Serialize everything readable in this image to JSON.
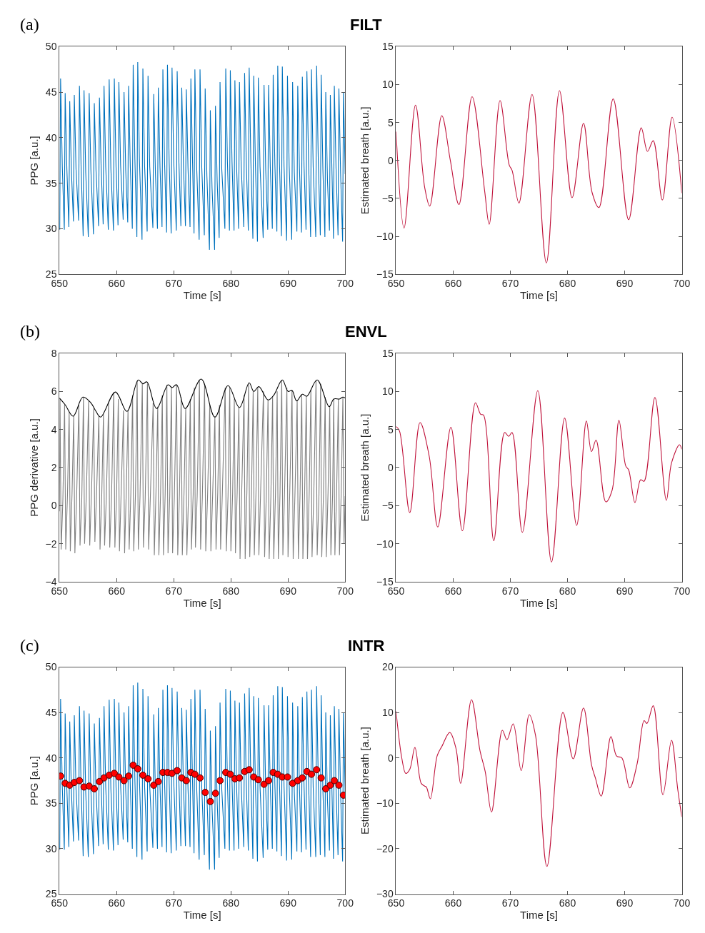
{
  "chart_data": [
    {
      "type": "line",
      "title": "FILT",
      "annotations": [
        "(a)"
      ],
      "xlabel": "Time [s]",
      "ylabel": "PPG [a.u.]",
      "xlim": [
        650,
        700
      ],
      "xticks": [
        650,
        660,
        670,
        680,
        690,
        700
      ],
      "ylim": [
        25,
        50
      ],
      "yticks": [
        25,
        30,
        35,
        40,
        45,
        50
      ],
      "series": [
        {
          "color": "#0072bd",
          "x": [
            650.05,
            650.2,
            650.5,
            650.85,
            651.0,
            651.3,
            651.65,
            651.8,
            652.1,
            652.45,
            652.6,
            652.9,
            653.35,
            653.5,
            653.8,
            654.15,
            654.3,
            654.6,
            655.05,
            655.2,
            655.5,
            655.95,
            656.1,
            656.4,
            656.85,
            657.0,
            657.3,
            657.65,
            657.8,
            658.1,
            658.55,
            658.7,
            659.0,
            659.45,
            659.6,
            659.9,
            660.25,
            660.4,
            660.7,
            661.15,
            661.3,
            661.6,
            661.95,
            662.1,
            662.4,
            662.75,
            662.9,
            663.2,
            663.55,
            663.7,
            664.0,
            664.45,
            664.6,
            664.9,
            665.35,
            665.5,
            665.8,
            666.35,
            666.5,
            666.8,
            667.15,
            667.3,
            667.6,
            667.95,
            668.1,
            668.4,
            668.75,
            668.9,
            669.2,
            669.55,
            669.7,
            670.0,
            670.45,
            670.6,
            670.9,
            671.25,
            671.4,
            671.7,
            672.05,
            672.2,
            672.5,
            672.85,
            673.0,
            673.3,
            673.55,
            673.7,
            674.0,
            674.45,
            674.6,
            674.9,
            675.35,
            675.5,
            675.8,
            676.25,
            676.4,
            676.7,
            677.15,
            677.3,
            677.6,
            677.95,
            678.1,
            678.4,
            678.95,
            679.1,
            679.4,
            679.75,
            679.9,
            680.2,
            680.55,
            680.7,
            681.0,
            681.35,
            681.5,
            681.8,
            682.25,
            682.4,
            682.7,
            683.05,
            683.2,
            683.5,
            683.85,
            684.0,
            684.3,
            684.65,
            684.8,
            685.1,
            685.65,
            685.8,
            686.1,
            686.45,
            686.6,
            686.9,
            687.25,
            687.4,
            687.7,
            688.05,
            688.2,
            688.5,
            688.85,
            689.0,
            689.3,
            689.75,
            689.9,
            690.2,
            690.65,
            690.8,
            691.1,
            691.55,
            691.7,
            692.0,
            692.35,
            692.5,
            692.8,
            693.15,
            693.3,
            693.6,
            693.95,
            694.1,
            694.4,
            694.85,
            695.0,
            695.3,
            695.65,
            695.8,
            696.1,
            696.45,
            696.6,
            696.9,
            697.25,
            697.4,
            697.7,
            697.95,
            698.1,
            698.4,
            698.75,
            698.9,
            699.2,
            699.55,
            699.7,
            700.0
          ],
          "values": [
            29.9,
            46.5,
            36.8,
            29.9,
            44.9,
            36.5,
            30.2,
            44.0,
            36.2,
            30.8,
            44.7,
            36.6,
            30.9,
            45.7,
            36.5,
            29.2,
            45.2,
            36.2,
            29.1,
            44.9,
            36.5,
            29.4,
            43.8,
            36.4,
            30.3,
            44.4,
            36.7,
            30.5,
            45.7,
            36.8,
            29.9,
            46.4,
            36.6,
            29.8,
            46.5,
            36.9,
            30.4,
            46.1,
            37.0,
            31.0,
            45.0,
            36.4,
            30.7,
            45.7,
            36.8,
            30.0,
            48.0,
            37.6,
            29.1,
            48.3,
            37.5,
            28.8,
            47.6,
            36.9,
            29.7,
            46.8,
            36.8,
            30.1,
            44.8,
            36.0,
            30.0,
            45.5,
            36.7,
            30.2,
            47.5,
            37.2,
            29.6,
            48.0,
            37.3,
            29.5,
            47.7,
            37.4,
            29.8,
            47.3,
            37.4,
            30.3,
            45.5,
            36.9,
            30.3,
            45.3,
            36.6,
            30.2,
            46.5,
            37.1,
            29.5,
            47.5,
            37.0,
            28.8,
            47.5,
            36.8,
            29.3,
            45.4,
            35.8,
            27.7,
            43.0,
            34.5,
            27.7,
            43.5,
            35.2,
            29.0,
            46.1,
            36.6,
            30.0,
            47.6,
            37.2,
            29.8,
            47.4,
            37.3,
            29.8,
            46.3,
            36.8,
            30.0,
            46.1,
            37.0,
            30.2,
            47.1,
            37.1,
            29.8,
            47.7,
            37.3,
            28.9,
            46.8,
            36.9,
            28.6,
            46.6,
            36.8,
            29.0,
            45.8,
            36.4,
            29.9,
            45.8,
            36.7,
            30.0,
            46.9,
            37.0,
            29.7,
            47.9,
            37.2,
            29.2,
            47.8,
            36.9,
            28.7,
            46.8,
            36.9,
            28.8,
            46.1,
            36.2,
            29.7,
            45.7,
            36.6,
            29.6,
            46.7,
            36.9,
            29.9,
            47.3,
            37.2,
            29.1,
            47.5,
            36.8,
            29.1,
            47.9,
            37.3,
            29.3,
            46.9,
            36.5,
            29.1,
            45.0,
            35.3,
            29.8,
            44.7,
            35.9,
            28.9,
            45.7,
            36.7,
            29.3,
            45.4,
            36.1,
            28.6,
            45.0,
            36.0
          ]
        }
      ]
    },
    {
      "type": "line",
      "xlabel": "Time [s]",
      "ylabel": "Estimated breath [a.u.]",
      "xlim": [
        650,
        700
      ],
      "xticks": [
        650,
        660,
        670,
        680,
        690,
        700
      ],
      "ylim": [
        -15,
        15
      ],
      "yticks": [
        -15,
        -10,
        -5,
        0,
        5,
        10,
        15
      ],
      "series": [
        {
          "color": "#c0143c",
          "x": [
            650,
            651.4,
            653.4,
            655.0,
            655.9,
            658.0,
            659.5,
            661.0,
            663.3,
            665.5,
            666.3,
            668.2,
            669.8,
            670.3,
            671.5,
            673.8,
            676.3,
            678.6,
            680.8,
            682.8,
            684.3,
            685.5,
            688.0,
            690.7,
            692.9,
            694.0,
            695.0,
            696.6,
            698.3,
            700
          ],
          "values": [
            3.8,
            -8.9,
            7.3,
            -3.5,
            -6.0,
            5.9,
            0,
            -5.8,
            8.4,
            -4,
            -8.4,
            7.9,
            -0.6,
            -1.3,
            -5.6,
            8.7,
            -13.5,
            9.2,
            -4.9,
            4.9,
            -4.2,
            -6.2,
            8.1,
            -7.8,
            4.3,
            1.2,
            2.6,
            -5.2,
            5.7,
            -4.3
          ]
        }
      ]
    },
    {
      "type": "line",
      "title": "ENVL",
      "annotations": [
        "(b)"
      ],
      "xlabel": "Time [s]",
      "ylabel": "PPG derivative [a.u.]",
      "xlim": [
        650,
        700
      ],
      "xticks": [
        650,
        660,
        670,
        680,
        690,
        700
      ],
      "ylim": [
        -4,
        8
      ],
      "yticks": [
        -4,
        -2,
        0,
        2,
        4,
        6,
        8
      ],
      "series": [
        {
          "color": "#808080",
          "x": [
            650.0,
            650.1,
            650.3,
            650.6,
            650.9,
            651.1,
            651.4,
            651.7,
            651.9,
            652.2,
            652.5,
            652.7,
            653.0,
            653.4,
            653.6,
            653.9,
            654.2,
            654.4,
            654.7,
            655.1,
            655.3,
            655.6,
            656.0,
            656.2,
            656.5,
            656.9,
            657.1,
            657.4,
            657.7,
            657.9,
            658.2,
            658.6,
            658.8,
            659.1,
            659.5,
            659.7,
            660.0,
            660.3,
            660.5,
            660.8,
            661.2,
            661.4,
            661.7,
            662.0,
            662.2,
            662.5,
            662.8,
            663.0,
            663.3,
            663.6,
            663.8,
            664.1,
            664.5,
            664.7,
            665.0,
            665.4,
            665.6,
            665.9,
            666.4,
            666.6,
            666.9,
            667.2,
            667.4,
            667.7,
            668.0,
            668.2,
            668.5,
            668.8,
            669.0,
            669.3,
            669.6,
            669.8,
            670.1,
            670.5,
            670.7,
            671.0,
            671.3,
            671.5,
            671.8,
            672.1,
            672.3,
            672.6,
            672.9,
            673.1,
            673.4,
            673.6,
            673.8,
            674.1,
            674.5,
            674.7,
            675.0,
            675.4,
            675.6,
            675.9,
            676.3,
            676.5,
            676.8,
            677.2,
            677.4,
            677.7,
            678.0,
            678.2,
            678.5,
            679.0,
            679.2,
            679.5,
            679.8,
            680.0,
            680.3,
            680.6,
            680.8,
            681.1,
            681.4,
            681.6,
            681.9,
            682.3,
            682.5,
            682.8,
            683.1,
            683.3,
            683.6,
            683.9,
            684.1,
            684.4,
            684.7,
            684.9,
            685.2,
            685.7,
            685.9,
            686.2,
            686.5,
            686.7,
            687.0,
            687.3,
            687.5,
            687.8,
            688.1,
            688.3,
            688.6,
            688.9,
            689.1,
            689.4,
            689.8,
            690.0,
            690.3,
            690.7,
            690.9,
            691.2,
            691.6,
            691.8,
            692.1,
            692.4,
            692.6,
            692.9,
            693.2,
            693.4,
            693.7,
            694.0,
            694.2,
            694.5,
            694.9,
            695.1,
            695.4,
            695.7,
            695.9,
            696.2,
            696.5,
            696.7,
            697.0,
            697.3,
            697.5,
            697.8,
            698.0,
            698.2,
            698.5,
            698.8,
            699.0,
            699.3,
            699.6,
            699.8,
            700.0
          ],
          "values": [
            -0.3,
            5.6,
            -2.3,
            0.3,
            5.3,
            -2.3,
            0.5,
            4.9,
            -2.4,
            0.6,
            4.7,
            -2.5,
            0.4,
            5.3,
            -2.1,
            0.2,
            5.7,
            -2.0,
            0.5,
            5.5,
            -2.1,
            0.6,
            5.1,
            -1.9,
            0.7,
            4.7,
            -2.3,
            0.5,
            4.8,
            -2.1,
            0.4,
            5.4,
            -2.2,
            0.3,
            5.95,
            -2.2,
            0.6,
            5.6,
            -2.4,
            0.7,
            5.0,
            -2.5,
            0.8,
            5.0,
            -2.3,
            0.7,
            5.8,
            -2.4,
            0.6,
            6.55,
            -2.3,
            0.5,
            6.4,
            -2.2,
            0.3,
            6.4,
            -2.3,
            0.4,
            5.4,
            -2.6,
            0.8,
            5.2,
            -2.6,
            0.7,
            5.8,
            -2.6,
            0.6,
            6.35,
            -2.5,
            0.5,
            6.2,
            -2.5,
            0.4,
            6.35,
            -2.6,
            0.6,
            5.7,
            -2.6,
            0.7,
            5.1,
            -2.6,
            0.7,
            5.6,
            -2.3,
            0.6,
            6.2,
            -2.2,
            0.5,
            6.6,
            -2.3,
            0.4,
            6.3,
            -2.4,
            0.3,
            5.3,
            -2.4,
            0.5,
            4.7,
            -2.3,
            0.7,
            5.3,
            -2.3,
            0.6,
            6.2,
            -2.4,
            0.5,
            6.2,
            -2.4,
            0.6,
            5.6,
            -2.5,
            0.7,
            5.2,
            -2.8,
            0.8,
            5.8,
            -2.8,
            0.7,
            6.4,
            -2.7,
            0.6,
            6.0,
            -2.6,
            0.8,
            6.2,
            -2.6,
            0.7,
            6.0,
            -2.7,
            0.6,
            5.55,
            -2.8,
            0.5,
            5.75,
            -2.8,
            0.6,
            6.0,
            -2.8,
            0.7,
            6.6,
            -2.6,
            0.8,
            6.2,
            -2.7,
            0.7,
            6.05,
            -2.8,
            0.5,
            5.55,
            -2.8,
            0.6,
            5.85,
            -2.8,
            0.7,
            5.75,
            -2.8,
            0.6,
            6.1,
            -2.7,
            0.5,
            6.6,
            -2.6,
            0.4,
            6.4,
            -2.7,
            0.6,
            5.7,
            -2.7,
            0.7,
            5.2,
            -2.6,
            0.6,
            5.6,
            -2.6,
            0.7,
            5.6,
            -2.6,
            0.6,
            5.7,
            -2.0,
            0.5
          ]
        },
        {
          "color": "#000000",
          "x": [
            650,
            651.0,
            652.4,
            654.1,
            655.5,
            656.3,
            657.2,
            659.8,
            661.8,
            663.8,
            664.6,
            665.3,
            667.0,
            669.0,
            669.7,
            670.5,
            672.0,
            674.8,
            677.2,
            679.5,
            681.5,
            683.2,
            684.0,
            684.9,
            686.5,
            687.5,
            689.0,
            690.0,
            690.7,
            691.5,
            692.5,
            693.3,
            695.1,
            697.2,
            698.0,
            699.0,
            699.6,
            700
          ],
          "values": [
            5.65,
            5.3,
            4.7,
            5.7,
            5.4,
            5.0,
            4.65,
            5.97,
            4.95,
            6.6,
            6.4,
            6.5,
            5.1,
            6.35,
            6.2,
            6.35,
            5.1,
            6.65,
            4.65,
            6.3,
            5.15,
            6.45,
            6.0,
            6.25,
            5.55,
            5.8,
            6.6,
            6.0,
            6.05,
            5.5,
            5.85,
            5.75,
            6.6,
            5.2,
            5.6,
            5.6,
            5.7,
            5.65
          ]
        }
      ]
    },
    {
      "type": "line",
      "xlabel": "Time [s]",
      "ylabel": "Estimated breath [a.u.]",
      "xlim": [
        650,
        700
      ],
      "xticks": [
        650,
        660,
        670,
        680,
        690,
        700
      ],
      "ylim": [
        -15,
        15
      ],
      "yticks": [
        -15,
        -10,
        -5,
        0,
        5,
        10,
        15
      ],
      "series": [
        {
          "color": "#c0143c",
          "x": [
            650,
            650.6,
            652.4,
            654.2,
            655.8,
            657.3,
            659.6,
            661.6,
            663.9,
            664.8,
            665.3,
            667.1,
            669.0,
            669.7,
            670.3,
            672.1,
            674.8,
            677.2,
            679.5,
            681.6,
            683.3,
            684.2,
            685.0,
            686.7,
            687.8,
            689.0,
            690.2,
            690.7,
            691.8,
            692.8,
            693.4,
            695.3,
            697.3,
            698.2,
            699.6,
            700
          ],
          "values": [
            5.4,
            4.8,
            -5.9,
            5.9,
            1.5,
            -7.8,
            5.3,
            -8.3,
            8.5,
            7.0,
            6.9,
            -9.6,
            4.6,
            4.1,
            4.6,
            -8.5,
            10.1,
            -12.4,
            6.5,
            -7.6,
            6.1,
            2.1,
            3.6,
            -4.5,
            -3.0,
            6.2,
            0.2,
            -0.3,
            -4.6,
            -1.6,
            -1.8,
            9.2,
            -4.3,
            0.6,
            3.0,
            2.4
          ]
        }
      ]
    },
    {
      "type": "line",
      "title": "INTR",
      "annotations": [
        "(c)"
      ],
      "xlabel": "Time [s]",
      "ylabel": "PPG [a.u.]",
      "xlim": [
        650,
        700
      ],
      "xticks": [
        650,
        660,
        670,
        680,
        690,
        700
      ],
      "ylim": [
        25,
        50
      ],
      "yticks": [
        25,
        30,
        35,
        40,
        45,
        50
      ],
      "series": [
        {
          "color": "#0072bd",
          "x": [
            650.05,
            650.2,
            650.5,
            650.85,
            651.0,
            651.3,
            651.65,
            651.8,
            652.1,
            652.45,
            652.6,
            652.9,
            653.35,
            653.5,
            653.8,
            654.15,
            654.3,
            654.6,
            655.05,
            655.2,
            655.5,
            655.95,
            656.1,
            656.4,
            656.85,
            657.0,
            657.3,
            657.65,
            657.8,
            658.1,
            658.55,
            658.7,
            659.0,
            659.45,
            659.6,
            659.9,
            660.25,
            660.4,
            660.7,
            661.15,
            661.3,
            661.6,
            661.95,
            662.1,
            662.4,
            662.75,
            662.9,
            663.2,
            663.55,
            663.7,
            664.0,
            664.45,
            664.6,
            664.9,
            665.35,
            665.5,
            665.8,
            666.35,
            666.5,
            666.8,
            667.15,
            667.3,
            667.6,
            667.95,
            668.1,
            668.4,
            668.75,
            668.9,
            669.2,
            669.55,
            669.7,
            670.0,
            670.45,
            670.6,
            670.9,
            671.25,
            671.4,
            671.7,
            672.05,
            672.2,
            672.5,
            672.85,
            673.0,
            673.3,
            673.55,
            673.7,
            674.0,
            674.45,
            674.6,
            674.9,
            675.35,
            675.5,
            675.8,
            676.25,
            676.4,
            676.7,
            677.15,
            677.3,
            677.6,
            677.95,
            678.1,
            678.4,
            678.95,
            679.1,
            679.4,
            679.75,
            679.9,
            680.2,
            680.55,
            680.7,
            681.0,
            681.35,
            681.5,
            681.8,
            682.25,
            682.4,
            682.7,
            683.05,
            683.2,
            683.5,
            683.85,
            684.0,
            684.3,
            684.65,
            684.8,
            685.1,
            685.65,
            685.8,
            686.1,
            686.45,
            686.6,
            686.9,
            687.25,
            687.4,
            687.7,
            688.05,
            688.2,
            688.5,
            688.85,
            689.0,
            689.3,
            689.75,
            689.9,
            690.2,
            690.65,
            690.8,
            691.1,
            691.55,
            691.7,
            692.0,
            692.35,
            692.5,
            692.8,
            693.15,
            693.3,
            693.6,
            693.95,
            694.1,
            694.4,
            694.85,
            695.0,
            695.3,
            695.65,
            695.8,
            696.1,
            696.45,
            696.6,
            696.9,
            697.25,
            697.4,
            697.7,
            697.95,
            698.1,
            698.4,
            698.75,
            698.9,
            699.2,
            699.55,
            699.7,
            700.0
          ],
          "values": [
            29.9,
            46.5,
            36.8,
            29.9,
            44.9,
            36.5,
            30.2,
            44.0,
            36.2,
            30.8,
            44.7,
            36.6,
            30.9,
            45.7,
            36.5,
            29.2,
            45.2,
            36.2,
            29.1,
            44.9,
            36.5,
            29.4,
            43.8,
            36.4,
            30.3,
            44.4,
            36.7,
            30.5,
            45.7,
            36.8,
            29.9,
            46.4,
            36.6,
            29.8,
            46.5,
            36.9,
            30.4,
            46.1,
            37.0,
            31.0,
            45.0,
            36.4,
            30.7,
            45.7,
            36.8,
            30.0,
            48.0,
            37.6,
            29.1,
            48.3,
            37.5,
            28.8,
            47.6,
            36.9,
            29.7,
            46.8,
            36.8,
            30.1,
            44.8,
            36.0,
            30.0,
            45.5,
            36.7,
            30.2,
            47.5,
            37.2,
            29.6,
            48.0,
            37.3,
            29.5,
            47.7,
            37.4,
            29.8,
            47.3,
            37.4,
            30.3,
            45.5,
            36.9,
            30.3,
            45.3,
            36.6,
            30.2,
            46.5,
            37.1,
            29.5,
            47.5,
            37.0,
            28.8,
            47.5,
            36.8,
            29.3,
            45.4,
            35.8,
            27.7,
            43.0,
            34.5,
            27.7,
            43.5,
            35.2,
            29.0,
            46.1,
            36.6,
            30.0,
            47.6,
            37.2,
            29.8,
            47.4,
            37.3,
            29.8,
            46.3,
            36.8,
            30.0,
            46.1,
            37.0,
            30.2,
            47.1,
            37.1,
            29.8,
            47.7,
            37.3,
            28.9,
            46.8,
            36.9,
            28.6,
            46.6,
            36.8,
            29.0,
            45.8,
            36.4,
            29.9,
            45.8,
            36.7,
            30.0,
            46.9,
            37.0,
            29.7,
            47.9,
            37.2,
            29.2,
            47.8,
            36.9,
            28.7,
            46.8,
            36.9,
            28.8,
            46.1,
            36.2,
            29.7,
            45.7,
            36.6,
            29.6,
            46.7,
            36.9,
            29.9,
            47.3,
            37.2,
            29.1,
            47.5,
            36.8,
            29.1,
            47.9,
            37.3,
            29.3,
            46.9,
            36.5,
            29.1,
            45.0,
            35.3,
            29.8,
            44.7,
            35.9,
            28.9,
            45.7,
            36.7,
            29.3,
            45.4,
            36.1,
            28.6,
            45.0,
            36.0
          ]
        },
        {
          "type": "scatter",
          "marker": "circle",
          "color": "#ff0000",
          "x": [
            650.2,
            651.0,
            651.8,
            652.6,
            653.5,
            654.3,
            655.2,
            656.1,
            657.0,
            657.8,
            658.7,
            659.6,
            660.4,
            661.3,
            662.1,
            662.9,
            663.7,
            664.6,
            665.5,
            666.5,
            667.3,
            668.1,
            668.9,
            669.7,
            670.6,
            671.4,
            672.2,
            673.0,
            673.7,
            674.6,
            675.5,
            676.4,
            677.3,
            678.1,
            679.1,
            679.9,
            680.7,
            681.5,
            682.4,
            683.2,
            684.0,
            684.8,
            685.8,
            686.6,
            687.4,
            688.2,
            689.0,
            689.9,
            690.8,
            691.7,
            692.5,
            693.3,
            694.1,
            695.0,
            695.8,
            696.6,
            697.4,
            698.1,
            698.9,
            699.7
          ],
          "values": [
            38.0,
            37.2,
            37.0,
            37.3,
            37.5,
            36.8,
            36.9,
            36.6,
            37.4,
            37.8,
            38.1,
            38.3,
            37.9,
            37.5,
            38.0,
            39.2,
            38.8,
            38.1,
            37.7,
            37.0,
            37.4,
            38.4,
            38.4,
            38.3,
            38.6,
            37.8,
            37.5,
            38.4,
            38.2,
            37.8,
            36.2,
            35.2,
            36.1,
            37.5,
            38.4,
            38.2,
            37.7,
            37.8,
            38.5,
            38.7,
            37.9,
            37.6,
            37.1,
            37.5,
            38.4,
            38.2,
            37.9,
            37.9,
            37.2,
            37.5,
            37.8,
            38.5,
            38.2,
            38.7,
            37.8,
            36.6,
            37.0,
            37.5,
            37.0,
            35.9
          ]
        }
      ]
    },
    {
      "type": "line",
      "xlabel": "Time [s]",
      "ylabel": "Estimated breath [a.u.]",
      "xlim": [
        650,
        700
      ],
      "xticks": [
        650,
        660,
        670,
        680,
        690,
        700
      ],
      "ylim": [
        -30,
        20
      ],
      "yticks": [
        -30,
        -20,
        -10,
        0,
        10,
        20
      ],
      "series": [
        {
          "color": "#c0143c",
          "x": [
            650,
            651.0,
            651.7,
            652.4,
            653.3,
            654.4,
            655.0,
            655.3,
            656.0,
            657.2,
            658.0,
            659.4,
            660.5,
            661.3,
            663.2,
            664.7,
            665.6,
            666.7,
            668.6,
            669.4,
            670.5,
            671.9,
            673.3,
            674.4,
            676.4,
            679.2,
            681.0,
            682.8,
            684.2,
            684.9,
            685.9,
            687.6,
            688.6,
            689.5,
            690.9,
            692.2,
            693.4,
            693.9,
            695.0,
            696.7,
            698.2,
            699.3,
            700
          ],
          "values": [
            10.3,
            0,
            -3.4,
            -2.5,
            2.3,
            -5.6,
            -6.2,
            -6.4,
            -9.0,
            0.5,
            2.5,
            5.6,
            2.0,
            -5.6,
            12.8,
            1.5,
            -3.0,
            -11.9,
            6.1,
            4.0,
            7.5,
            -2.8,
            9.5,
            5.0,
            -23.9,
            10.0,
            -0.2,
            11.0,
            -1.5,
            -4.5,
            -8.4,
            4.7,
            0.4,
            0.0,
            -6.6,
            -1.2,
            8.2,
            7.6,
            11.5,
            -8.1,
            3.9,
            -7.0,
            -13.0
          ]
        }
      ]
    }
  ]
}
